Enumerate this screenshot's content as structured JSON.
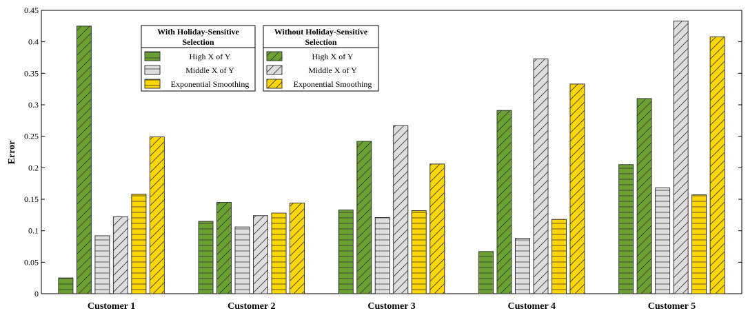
{
  "chart_data": {
    "type": "bar",
    "title": "",
    "xlabel": "",
    "ylabel": "Error",
    "ylim": [
      0,
      0.45
    ],
    "yticks": [
      0,
      0.05,
      0.1,
      0.15,
      0.2,
      0.25,
      0.3,
      0.35,
      0.4,
      0.45
    ],
    "ytick_labels": [
      "0",
      "0.05",
      "0.1",
      "0.15",
      "0.2",
      "0.25",
      "0.3",
      "0.35",
      "0.4",
      "0.45"
    ],
    "grid": false,
    "categories": [
      "Customer 1",
      "Customer 2",
      "Customer 3",
      "Customer 4",
      "Customer 5"
    ],
    "series": [
      {
        "name": "High X of Y",
        "group": "With Holiday-Sensitive Selection",
        "pattern": "horizontal",
        "color": "#6aa130",
        "values": [
          0.025,
          0.115,
          0.133,
          0.067,
          0.205
        ]
      },
      {
        "name": "High X of Y",
        "group": "Without Holiday-Sensitive Selection",
        "pattern": "diagonal",
        "color": "#6aa130",
        "values": [
          0.425,
          0.145,
          0.242,
          0.291,
          0.31
        ]
      },
      {
        "name": "Middle X of Y",
        "group": "With Holiday-Sensitive Selection",
        "pattern": "horizontal",
        "color": "#dedede",
        "values": [
          0.092,
          0.106,
          0.121,
          0.088,
          0.168
        ]
      },
      {
        "name": "Middle X of Y",
        "group": "Without Holiday-Sensitive Selection",
        "pattern": "diagonal",
        "color": "#dedede",
        "values": [
          0.122,
          0.124,
          0.267,
          0.373,
          0.433
        ]
      },
      {
        "name": "Exponential Smoothing",
        "group": "With Holiday-Sensitive Selection",
        "pattern": "horizontal",
        "color": "#ffd700",
        "values": [
          0.158,
          0.128,
          0.132,
          0.118,
          0.157
        ]
      },
      {
        "name": "Exponential Smoothing",
        "group": "Without Holiday-Sensitive Selection",
        "pattern": "diagonal",
        "color": "#ffd700",
        "values": [
          0.249,
          0.144,
          0.206,
          0.333,
          0.408
        ]
      }
    ],
    "legend": {
      "placement": "top-left",
      "groups": [
        {
          "title_lines": [
            "With Holiday-Sensitive",
            "Selection"
          ],
          "pattern": "horizontal",
          "entries": [
            "High X of Y",
            "Middle X of Y",
            "Exponential Smoothing"
          ]
        },
        {
          "title_lines": [
            "Without Holiday-Sensitive",
            "Selection"
          ],
          "pattern": "diagonal",
          "entries": [
            "High X of Y",
            "Middle X of Y",
            "Exponential Smoothing"
          ]
        }
      ]
    }
  },
  "colors": {
    "green": "#6aa130",
    "gray": "#dedede",
    "yellow": "#ffd700",
    "stroke": "#333333"
  }
}
